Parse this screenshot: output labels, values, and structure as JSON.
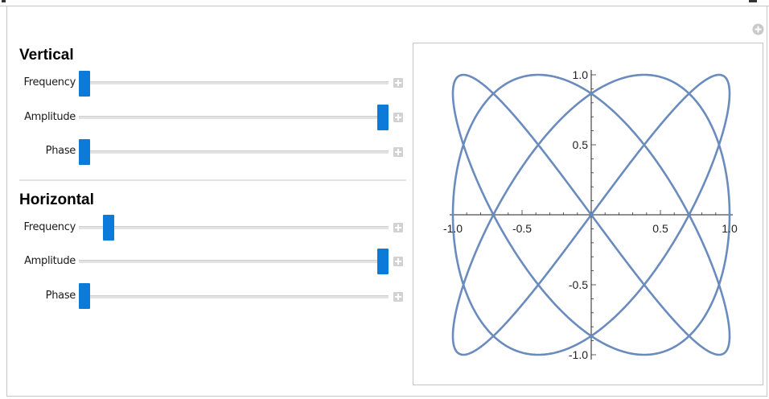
{
  "vertical": {
    "title": "Vertical",
    "controls": [
      {
        "label": "Frequency",
        "value_fraction": 0.0
      },
      {
        "label": "Amplitude",
        "value_fraction": 1.0
      },
      {
        "label": "Phase",
        "value_fraction": 0.0
      }
    ]
  },
  "horizontal": {
    "title": "Horizontal",
    "controls": [
      {
        "label": "Frequency",
        "value_fraction": 0.08
      },
      {
        "label": "Amplitude",
        "value_fraction": 1.0
      },
      {
        "label": "Phase",
        "value_fraction": 0.0
      }
    ]
  },
  "colors": {
    "slider_thumb": "#0b7ad9",
    "curve": "#6a8bbd"
  },
  "icons": {
    "settings": "plus-circle-icon",
    "increment": "plus-box-icon"
  },
  "chart_data": {
    "type": "line",
    "title": "",
    "xlabel": "",
    "ylabel": "",
    "xlim": [
      -1.0,
      1.0
    ],
    "ylim": [
      -1.0,
      1.0
    ],
    "x_ticks": [
      "-1.0",
      "-0.5",
      "0.5",
      "1.0"
    ],
    "y_ticks": [
      "1.0",
      "0.5",
      "-0.5",
      "-1.0"
    ],
    "curve": {
      "kind": "lissajous",
      "x_amplitude": 1.0,
      "x_frequency": 3,
      "y_amplitude": 1.0,
      "y_frequency": 4,
      "phase": 0.0
    },
    "grid": false
  }
}
